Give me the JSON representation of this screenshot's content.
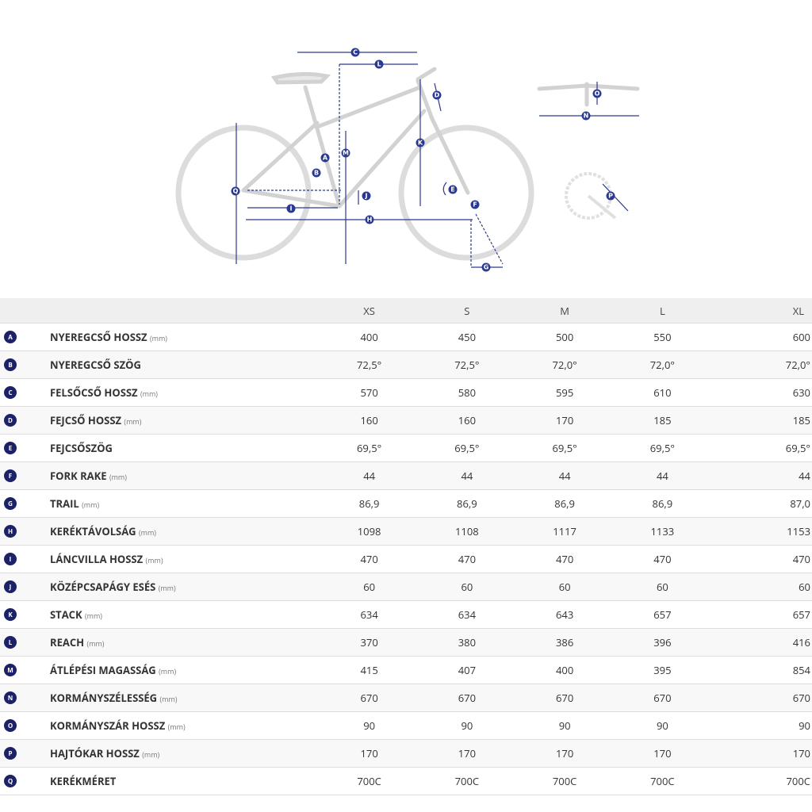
{
  "diagram": {
    "labels": [
      "C",
      "L",
      "D",
      "O",
      "N",
      "A",
      "B",
      "M",
      "K",
      "Q",
      "J",
      "E",
      "I",
      "H",
      "F",
      "G",
      "P"
    ]
  },
  "table": {
    "columns": [
      "XS",
      "S",
      "M",
      "L",
      "XL"
    ],
    "rows": [
      {
        "badge": "A",
        "name": "NYEREGCSŐ HOSSZ",
        "unit": "(mm)",
        "values": [
          "400",
          "450",
          "500",
          "550",
          "600"
        ]
      },
      {
        "badge": "B",
        "name": "NYEREGCSŐ SZÖG",
        "values": [
          "72,5°",
          "72,5°",
          "72,0°",
          "72,0°",
          "72,0°"
        ]
      },
      {
        "badge": "C",
        "name": "FELSŐCSŐ HOSSZ",
        "unit": "(mm)",
        "values": [
          "570",
          "580",
          "595",
          "610",
          "630"
        ]
      },
      {
        "badge": "D",
        "name": "FEJCSŐ HOSSZ",
        "unit": "(mm)",
        "values": [
          "160",
          "160",
          "170",
          "185",
          "185"
        ]
      },
      {
        "badge": "E",
        "name": "FEJCSŐSZÖG",
        "values": [
          "69,5°",
          "69,5°",
          "69,5°",
          "69,5°",
          "69,5°"
        ]
      },
      {
        "badge": "F",
        "name": "FORK RAKE",
        "unit": "(mm)",
        "values": [
          "44",
          "44",
          "44",
          "44",
          "44"
        ]
      },
      {
        "badge": "G",
        "name": "TRAIL",
        "unit": "(mm)",
        "values": [
          "86,9",
          "86,9",
          "86,9",
          "86,9",
          "87,0"
        ]
      },
      {
        "badge": "H",
        "name": "KERÉKTÁVOLSÁG",
        "unit": "(mm)",
        "values": [
          "1098",
          "1108",
          "1117",
          "1133",
          "1153"
        ]
      },
      {
        "badge": "I",
        "name": "LÁNCVILLA HOSSZ",
        "unit": "(mm)",
        "values": [
          "470",
          "470",
          "470",
          "470",
          "470"
        ]
      },
      {
        "badge": "J",
        "name": "KÖZÉPCSAPÁGY ESÉS",
        "unit": "(mm)",
        "values": [
          "60",
          "60",
          "60",
          "60",
          "60"
        ]
      },
      {
        "badge": "K",
        "name": "STACK",
        "unit": "(mm)",
        "values": [
          "634",
          "634",
          "643",
          "657",
          "657"
        ]
      },
      {
        "badge": "L",
        "name": "REACH",
        "unit": "(mm)",
        "values": [
          "370",
          "380",
          "386",
          "396",
          "416"
        ]
      },
      {
        "badge": "M",
        "name": "ÁTLÉPÉSI MAGASSÁG",
        "unit": "(mm)",
        "values": [
          "415",
          "407",
          "400",
          "395",
          "854"
        ]
      },
      {
        "badge": "N",
        "name": "KORMÁNYSZÉLESSÉG",
        "unit": "(mm)",
        "values": [
          "670",
          "670",
          "670",
          "670",
          "670"
        ]
      },
      {
        "badge": "O",
        "name": "KORMÁNYSZÁR HOSSZ",
        "unit": "(mm)",
        "values": [
          "90",
          "90",
          "90",
          "90",
          "90"
        ]
      },
      {
        "badge": "P",
        "name": "HAJTÓKAR HOSSZ",
        "unit": "(mm)",
        "values": [
          "170",
          "170",
          "170",
          "170",
          "170"
        ]
      },
      {
        "badge": "Q",
        "name": "KERÉKMÉRET",
        "values": [
          "700C",
          "700C",
          "700C",
          "700C",
          "700C"
        ]
      }
    ]
  }
}
